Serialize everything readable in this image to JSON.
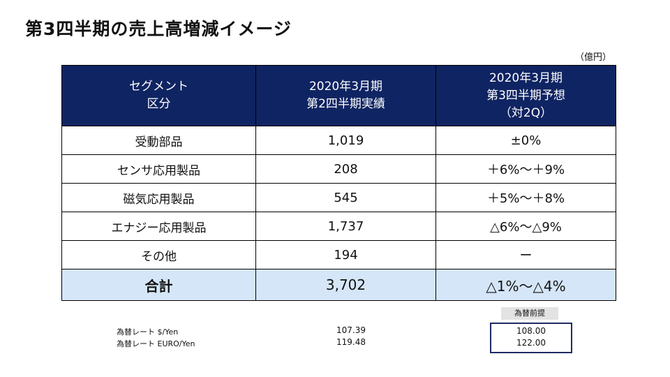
{
  "title": "第3四半期の売上高増減イメージ",
  "unit": "（億円）",
  "table": {
    "headers": {
      "segment": [
        "セグメント",
        "区分"
      ],
      "actual": [
        "2020年3月期",
        "第2四半期実績"
      ],
      "forecast": [
        "2020年3月期",
        "第3四半期予想",
        "（対2Q）"
      ]
    },
    "rows": [
      {
        "segment": "受動部品",
        "actual": "1,019",
        "forecast": "±0%"
      },
      {
        "segment": "センサ応用製品",
        "actual": "208",
        "forecast": "＋6%～＋9%"
      },
      {
        "segment": "磁気応用製品",
        "actual": "545",
        "forecast": "＋5%～＋8%"
      },
      {
        "segment": "エナジー応用製品",
        "actual": "1,737",
        "forecast": "△6%～△9%"
      },
      {
        "segment": "その他",
        "actual": "194",
        "forecast": "ー"
      }
    ],
    "total": {
      "segment": "合計",
      "actual": "3,702",
      "forecast": "△1%～△4%"
    }
  },
  "fx": {
    "assumption_label": "為替前提",
    "rows": [
      {
        "label": "為替レート $/Yen",
        "actual": "107.39",
        "assumption": "108.00"
      },
      {
        "label": "為替レート EURO/Yen",
        "actual": "119.48",
        "assumption": "122.00"
      }
    ]
  },
  "colors": {
    "header_bg": "#0f2462",
    "total_bg": "#d5e6f8",
    "box_border": "#1f2a66"
  }
}
